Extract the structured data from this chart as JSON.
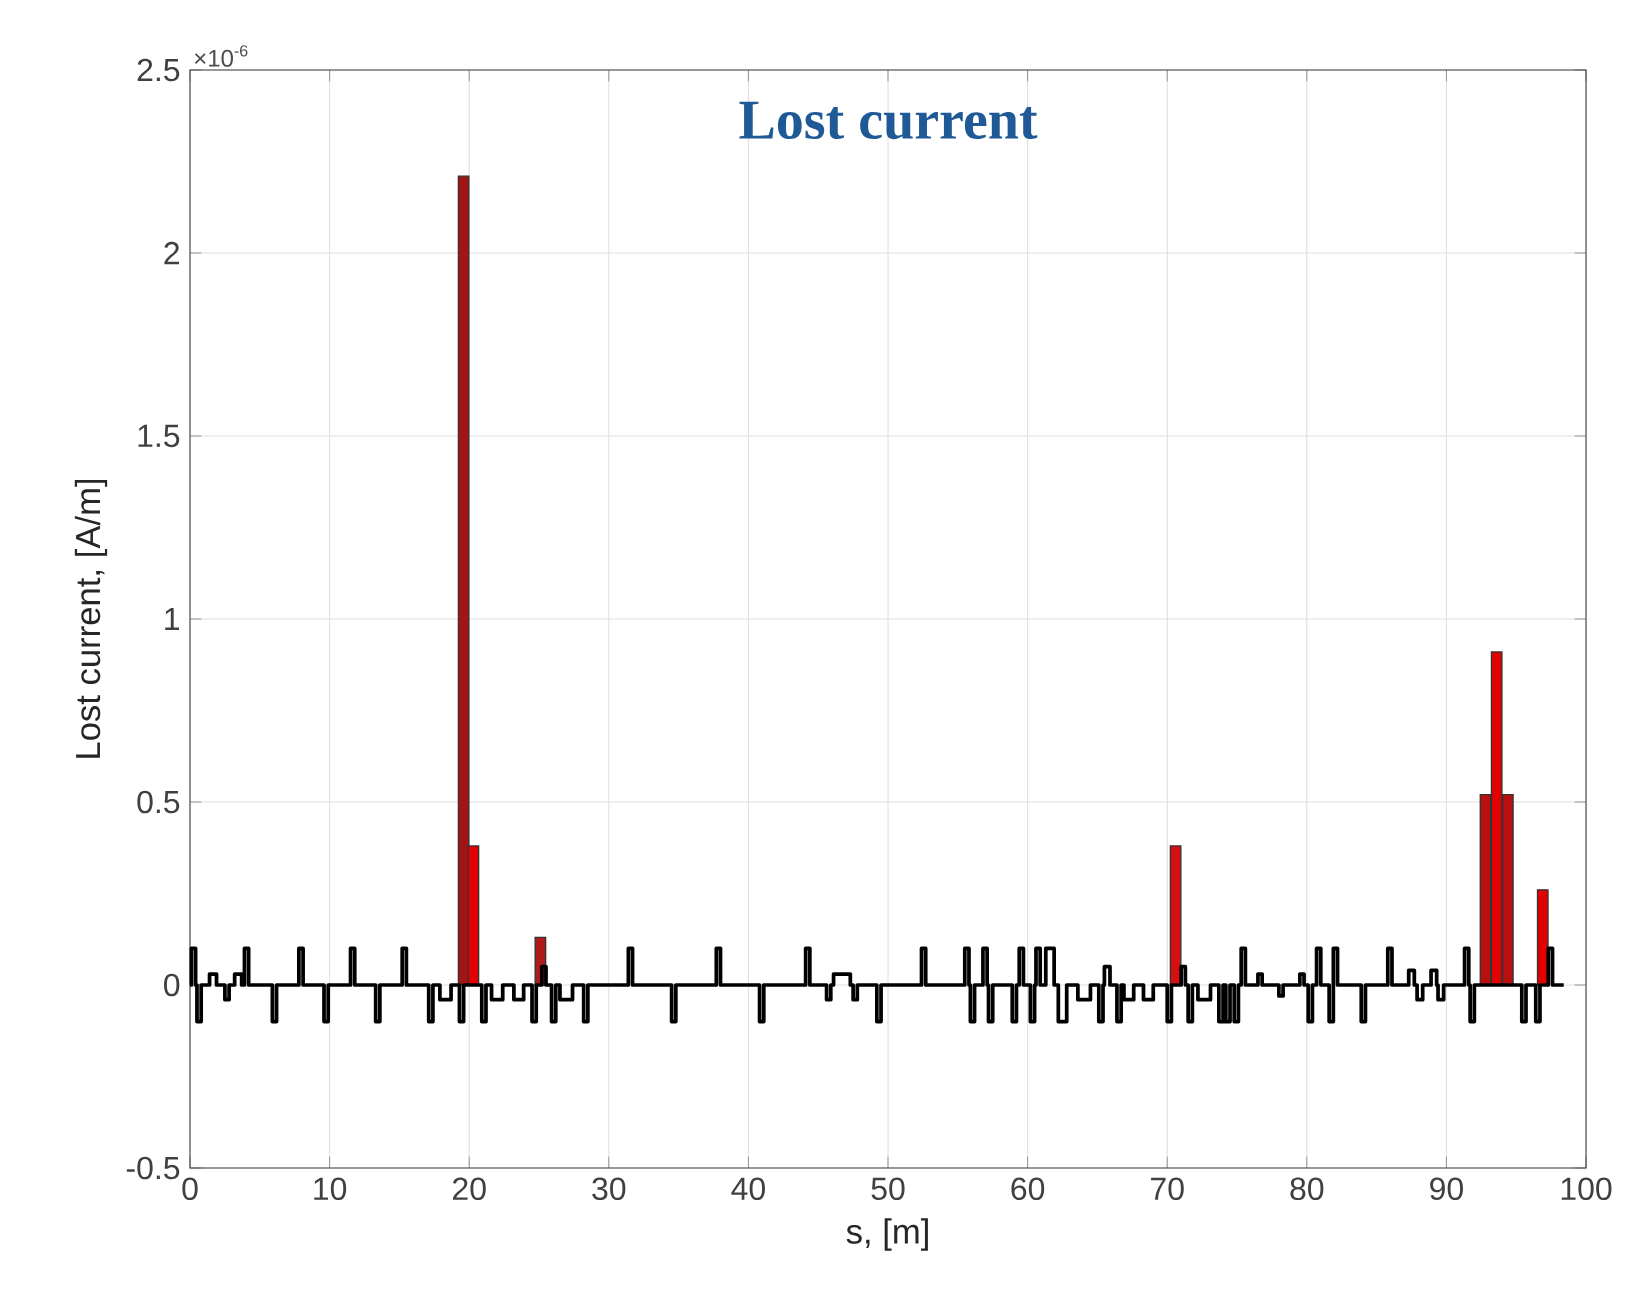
{
  "chart_data": {
    "type": "bar",
    "title": "Lost current",
    "xlabel": "s, [m]",
    "ylabel": "Lost current, [A/m]",
    "annotations": [
      "×10$^{-6}$"
    ],
    "xlim": [
      0,
      100
    ],
    "ylim": [
      -0.5,
      2.5
    ],
    "xticks": [
      0,
      10,
      20,
      30,
      40,
      50,
      60,
      70,
      80,
      90,
      100
    ],
    "yticks": [
      -0.5,
      0,
      0.5,
      1,
      1.5,
      2,
      2.5
    ],
    "grid": true,
    "series": [
      {
        "x": [
          19.6,
          20.3,
          25.1,
          70.6,
          92.8,
          93.6,
          94.4,
          96.9
        ],
        "values": [
          2.21,
          0.38,
          0.13,
          0.38,
          0.52,
          0.91,
          0.52,
          0.26
        ],
        "colors": [
          "#a31515",
          "#e30000",
          "#b01a1a",
          "#d41010",
          "#b81010",
          "#e30000",
          "#b81010",
          "#e30000"
        ]
      },
      {
        "type": "line",
        "color": "#000000",
        "x": [
          0,
          0.1,
          0.1,
          0.4,
          0.4,
          0.5,
          0.5,
          0.8,
          0.8,
          1.4,
          1.4,
          1.9,
          1.9,
          2.5,
          2.5,
          2.8,
          2.8,
          3.2,
          3.2,
          3.7,
          3.7,
          3.9,
          3.9,
          4.2,
          4.2,
          5.9,
          5.9,
          6.2,
          6.2,
          7.8,
          7.8,
          8.1,
          8.1,
          9.6,
          9.6,
          9.9,
          9.9,
          11.5,
          11.5,
          11.8,
          11.8,
          13.3,
          13.3,
          13.6,
          13.6,
          15.2,
          15.2,
          15.5,
          15.5,
          17.1,
          17.1,
          17.4,
          17.4,
          17.9,
          17.9,
          18.7,
          18.7,
          19.3,
          19.3,
          19.6,
          19.6,
          20.9,
          20.9,
          21.2,
          21.2,
          21.6,
          21.6,
          22.4,
          22.4,
          23.2,
          23.2,
          23.9,
          23.9,
          24.5,
          24.5,
          24.8,
          24.8,
          25.2,
          25.2,
          25.5,
          25.5,
          25.9,
          25.9,
          26.2,
          26.2,
          26.5,
          26.5,
          27.4,
          27.4,
          28.2,
          28.2,
          28.5,
          28.5,
          31.4,
          31.4,
          31.7,
          31.7,
          34.5,
          34.5,
          34.8,
          34.8,
          37.7,
          37.7,
          38.0,
          38.0,
          40.8,
          40.8,
          41.1,
          41.1,
          44.1,
          44.1,
          44.4,
          44.4,
          45.6,
          45.6,
          45.9,
          45.9,
          46.1,
          46.1,
          47.3,
          47.3,
          47.5,
          47.5,
          47.8,
          47.8,
          49.2,
          49.2,
          49.5,
          49.5,
          52.4,
          52.4,
          52.7,
          52.7,
          55.5,
          55.5,
          55.8,
          55.8,
          55.9,
          55.9,
          56.2,
          56.2,
          56.8,
          56.8,
          57.1,
          57.1,
          57.2,
          57.2,
          57.5,
          57.5,
          58.9,
          58.9,
          59.2,
          59.2,
          59.4,
          59.4,
          59.7,
          59.7,
          60.2,
          60.2,
          60.5,
          60.5,
          60.6,
          60.6,
          60.9,
          60.9,
          61.3,
          61.3,
          61.9,
          61.9,
          62.2,
          62.2,
          62.8,
          62.8,
          63.6,
          63.6,
          64.5,
          64.5,
          65.1,
          65.1,
          65.4,
          65.4,
          65.5,
          65.5,
          65.9,
          65.9,
          66.4,
          66.4,
          66.7,
          66.7,
          66.9,
          66.9,
          67.6,
          67.6,
          68.3,
          68.3,
          69.0,
          69.0,
          70.0,
          70.0,
          70.3,
          70.3,
          71.0,
          71.0,
          71.3,
          71.3,
          71.5,
          71.5,
          71.8,
          71.8,
          72.2,
          72.2,
          73.1,
          73.1,
          73.7,
          73.7,
          74.0,
          74.0,
          74.2,
          74.2,
          74.5,
          74.5,
          74.8,
          74.8,
          75.1,
          75.1,
          75.3,
          75.3,
          75.6,
          75.6,
          76.5,
          76.5,
          76.8,
          76.8,
          78.0,
          78.0,
          78.3,
          78.3,
          79.5,
          79.5,
          79.8,
          79.8,
          80.1,
          80.1,
          80.4,
          80.4,
          80.7,
          80.7,
          81.0,
          81.0,
          81.6,
          81.6,
          81.9,
          81.9,
          81.9,
          81.9,
          82.2,
          82.2,
          83.9,
          83.9,
          84.2,
          84.2,
          85.8,
          85.8,
          86.1,
          86.1,
          87.3,
          87.3,
          87.7,
          87.7,
          87.9,
          87.9,
          88.3,
          88.3,
          88.9,
          88.9,
          89.3,
          89.3,
          89.4,
          89.4,
          89.8,
          89.8,
          91.3,
          91.3,
          91.6,
          91.6,
          91.7,
          91.7,
          92.0,
          92.0,
          95.4,
          95.4,
          95.7,
          95.7,
          96.4,
          96.4,
          96.7,
          96.7,
          97.3,
          97.3,
          97.6,
          97.6,
          98.4
        ],
        "values": [
          0,
          0,
          0.1,
          0.1,
          0,
          0,
          -0.1,
          -0.1,
          0,
          0,
          0.03,
          0.03,
          0,
          0,
          -0.04,
          -0.04,
          0,
          0,
          0.03,
          0.03,
          0,
          0,
          0.1,
          0.1,
          0,
          0,
          -0.1,
          -0.1,
          0,
          0,
          0.1,
          0.1,
          0,
          0,
          -0.1,
          -0.1,
          0,
          0,
          0.1,
          0.1,
          0,
          0,
          -0.1,
          -0.1,
          0,
          0,
          0.1,
          0.1,
          0,
          0,
          -0.1,
          -0.1,
          0,
          0,
          -0.04,
          -0.04,
          0,
          0,
          -0.1,
          -0.1,
          0,
          0,
          -0.1,
          -0.1,
          0,
          0,
          -0.04,
          -0.04,
          0,
          0,
          -0.04,
          -0.04,
          0,
          0,
          -0.1,
          -0.1,
          0,
          0,
          0.05,
          0.05,
          0,
          0,
          -0.1,
          -0.1,
          0,
          0,
          -0.04,
          -0.04,
          0,
          0,
          -0.1,
          -0.1,
          0,
          0,
          0.1,
          0.1,
          0,
          0,
          -0.1,
          -0.1,
          0,
          0,
          0.1,
          0.1,
          0,
          0,
          -0.1,
          -0.1,
          0,
          0,
          0.1,
          0.1,
          0,
          0,
          -0.04,
          -0.04,
          0,
          0,
          0.03,
          0.03,
          0,
          0,
          -0.04,
          -0.04,
          0,
          0,
          -0.1,
          -0.1,
          0,
          0,
          0.1,
          0.1,
          0,
          0,
          0.1,
          0.1,
          0,
          0,
          -0.1,
          -0.1,
          0,
          0,
          0.1,
          0.1,
          0,
          0,
          -0.1,
          -0.1,
          0,
          0,
          -0.1,
          -0.1,
          0,
          0,
          0.1,
          0.1,
          0,
          0,
          -0.1,
          -0.1,
          0,
          0,
          0.1,
          0.1,
          0,
          0,
          0.1,
          0.1,
          0,
          0,
          -0.1,
          -0.1,
          0,
          0,
          -0.04,
          -0.04,
          0,
          0,
          -0.1,
          -0.1,
          0,
          0,
          0.05,
          0.05,
          0,
          0,
          -0.1,
          -0.1,
          0,
          0,
          -0.04,
          -0.04,
          0,
          0,
          -0.04,
          -0.04,
          0,
          0,
          -0.1,
          -0.1,
          0,
          0,
          0.05,
          0.05,
          0,
          0,
          -0.1,
          -0.1,
          0,
          0,
          -0.04,
          -0.04,
          0,
          0,
          -0.1,
          -0.1,
          0,
          0,
          -0.1,
          -0.1,
          0,
          0,
          -0.1,
          -0.1,
          0,
          0,
          0.1,
          0.1,
          0,
          0,
          0.03,
          0.03,
          0,
          0,
          -0.03,
          -0.03,
          0,
          0,
          0.03,
          0.03,
          0,
          0,
          -0.1,
          -0.1,
          0,
          0,
          0.1,
          0.1,
          0,
          0,
          -0.1,
          -0.1,
          0,
          0,
          0.1,
          0.1,
          0,
          0,
          -0.1,
          -0.1,
          0,
          0,
          0.1,
          0.1,
          0,
          0,
          0.04,
          0.04,
          0,
          0,
          -0.04,
          -0.04,
          0,
          0,
          0.04,
          0.04,
          0,
          0,
          -0.04,
          -0.04,
          0,
          0,
          0.1,
          0.1,
          0,
          0,
          -0.1,
          -0.1,
          0,
          0,
          -0.1,
          -0.1,
          0,
          0,
          -0.1,
          -0.1,
          0,
          0,
          0.1,
          0.1,
          0,
          0
        ]
      }
    ]
  }
}
